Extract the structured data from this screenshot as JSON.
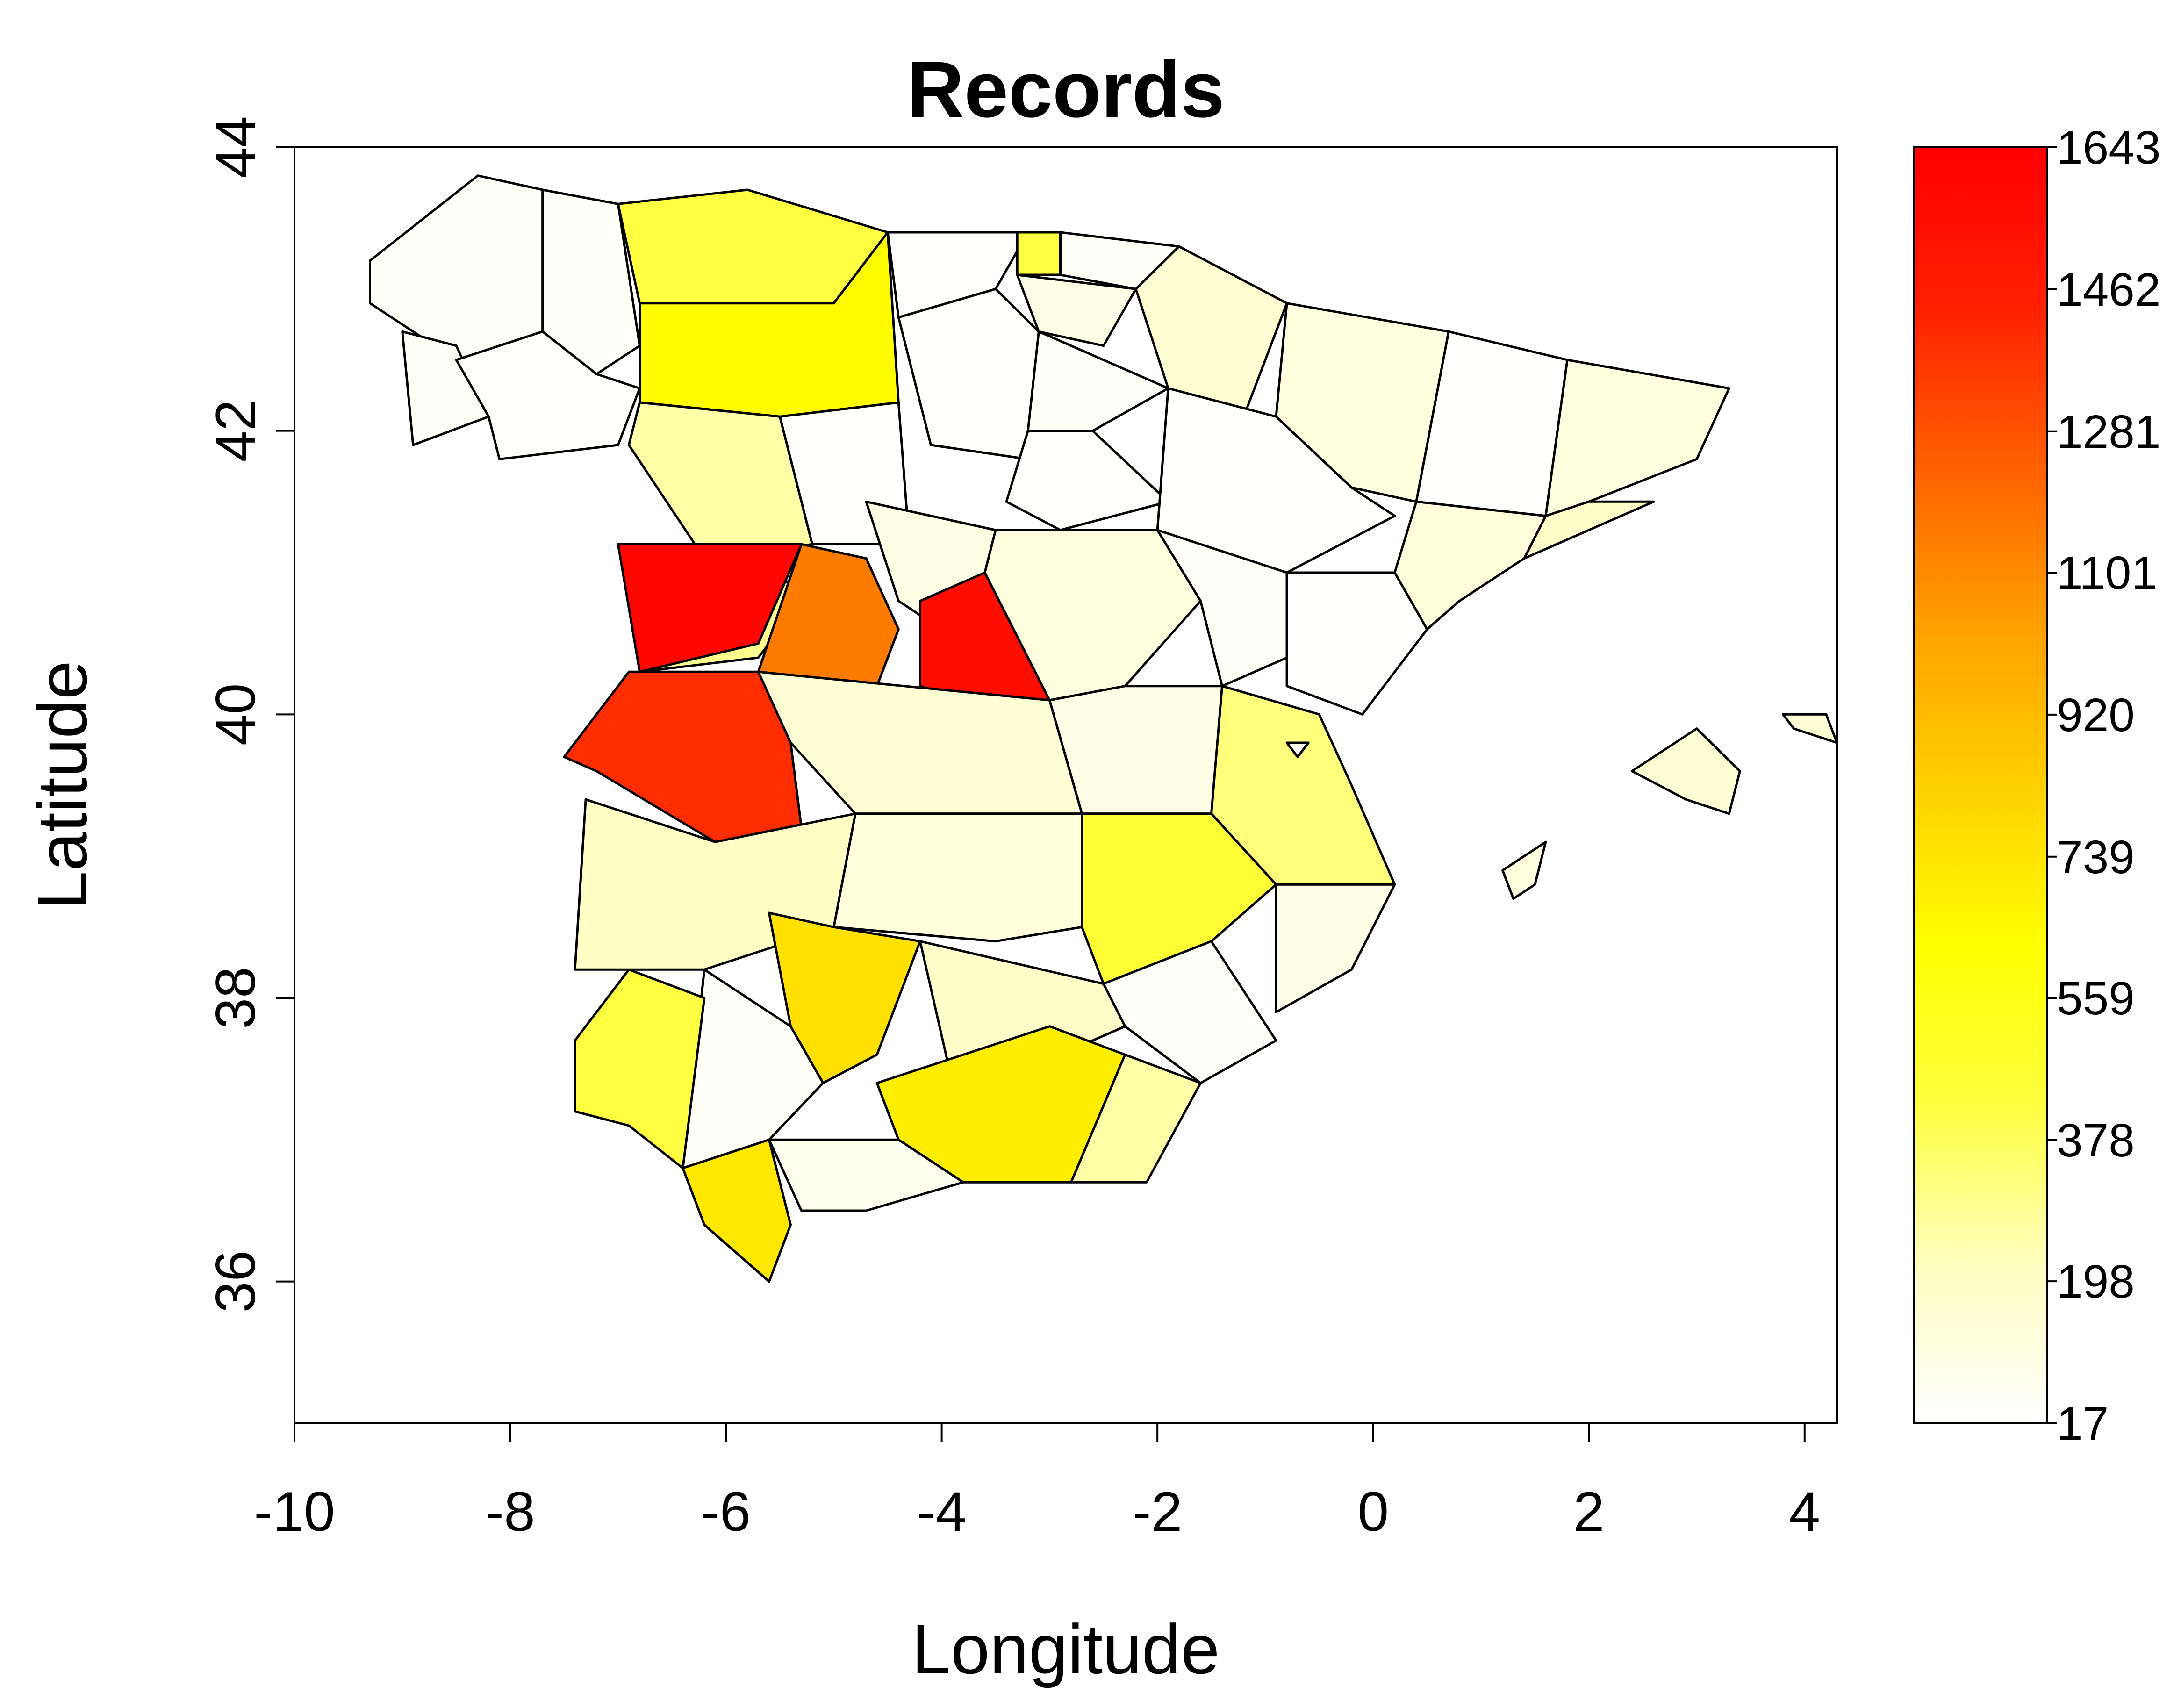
{
  "chart_data": {
    "type": "choropleth",
    "title": "Records",
    "xlabel": "Longitude",
    "ylabel": "Latitude",
    "xlim": [
      -10,
      4.3
    ],
    "ylim": [
      35,
      44
    ],
    "x_ticks": [
      "-10",
      "-8",
      "-6",
      "-4",
      "-2",
      "0",
      "2",
      "4"
    ],
    "y_ticks": [
      "36",
      "38",
      "40",
      "42",
      "44"
    ],
    "x_tick_values": [
      -10,
      -8,
      -6,
      -4,
      -2,
      0,
      2,
      4
    ],
    "y_tick_values": [
      36,
      38,
      40,
      42,
      44
    ],
    "colorbar": {
      "min": 17,
      "max": 1643,
      "labels": [
        "1643",
        "1462",
        "1281",
        "1101",
        "920",
        "739",
        "559",
        "378",
        "198",
        "17"
      ],
      "label_values": [
        1643,
        1462,
        1281,
        1101,
        920,
        739,
        559,
        378,
        198,
        17
      ],
      "stops": [
        "#ffffff",
        "#ffffc0",
        "#ffff40",
        "#ffff00",
        "#ffd000",
        "#ffa000",
        "#ff6000",
        "#ff2000",
        "#ff0000"
      ]
    },
    "regions": [
      {
        "value": 40,
        "poly": [
          [
            -9.3,
            43.2
          ],
          [
            -8.3,
            43.8
          ],
          [
            -7.7,
            43.7
          ],
          [
            -7.7,
            42.7
          ],
          [
            -8.5,
            42.5
          ],
          [
            -9.3,
            42.9
          ]
        ]
      },
      {
        "value": 35,
        "poly": [
          [
            -7.7,
            43.7
          ],
          [
            -7.0,
            43.6
          ],
          [
            -6.8,
            42.6
          ],
          [
            -7.2,
            42.4
          ],
          [
            -7.7,
            42.7
          ]
        ]
      },
      {
        "value": 40,
        "poly": [
          [
            -9.0,
            42.7
          ],
          [
            -8.5,
            42.6
          ],
          [
            -8.2,
            42.1
          ],
          [
            -8.9,
            41.9
          ]
        ]
      },
      {
        "value": 30,
        "poly": [
          [
            -8.5,
            42.5
          ],
          [
            -7.7,
            42.7
          ],
          [
            -7.2,
            42.4
          ],
          [
            -6.8,
            42.3
          ],
          [
            -7.0,
            41.9
          ],
          [
            -8.1,
            41.8
          ],
          [
            -8.2,
            42.1
          ]
        ]
      },
      {
        "value": 420,
        "poly": [
          [
            -7.0,
            43.6
          ],
          [
            -5.8,
            43.7
          ],
          [
            -4.5,
            43.4
          ],
          [
            -5.0,
            42.9
          ],
          [
            -6.8,
            42.9
          ]
        ]
      },
      {
        "value": 640,
        "poly": [
          [
            -6.8,
            42.9
          ],
          [
            -5.0,
            42.9
          ],
          [
            -4.5,
            43.4
          ],
          [
            -4.4,
            42.2
          ],
          [
            -5.5,
            42.1
          ],
          [
            -6.8,
            42.2
          ]
        ]
      },
      {
        "value": 260,
        "poly": [
          [
            -6.8,
            42.2
          ],
          [
            -5.5,
            42.1
          ],
          [
            -5.2,
            41.2
          ],
          [
            -6.2,
            41.1
          ],
          [
            -6.9,
            41.9
          ]
        ]
      },
      {
        "value": 20,
        "poly": [
          [
            -5.5,
            42.1
          ],
          [
            -4.4,
            42.2
          ],
          [
            -4.3,
            41.2
          ],
          [
            -5.2,
            41.2
          ]
        ]
      },
      {
        "value": 25,
        "poly": [
          [
            -4.5,
            43.4
          ],
          [
            -3.2,
            43.4
          ],
          [
            -3.5,
            43.0
          ],
          [
            -4.4,
            42.8
          ]
        ]
      },
      {
        "value": 420,
        "poly": [
          [
            -3.3,
            43.4
          ],
          [
            -2.9,
            43.4
          ],
          [
            -2.9,
            43.1
          ],
          [
            -3.3,
            43.1
          ]
        ]
      },
      {
        "value": 40,
        "poly": [
          [
            -2.9,
            43.4
          ],
          [
            -1.8,
            43.3
          ],
          [
            -2.2,
            43.0
          ],
          [
            -2.9,
            43.1
          ]
        ]
      },
      {
        "value": 90,
        "poly": [
          [
            -3.3,
            43.1
          ],
          [
            -2.2,
            43.0
          ],
          [
            -2.5,
            42.6
          ],
          [
            -3.1,
            42.7
          ]
        ]
      },
      {
        "value": 160,
        "poly": [
          [
            -1.8,
            43.3
          ],
          [
            -0.8,
            42.9
          ],
          [
            -1.2,
            42.1
          ],
          [
            -1.9,
            42.3
          ],
          [
            -2.2,
            43.0
          ]
        ]
      },
      {
        "value": 30,
        "poly": [
          [
            -4.4,
            42.8
          ],
          [
            -3.5,
            43.0
          ],
          [
            -3.1,
            42.7
          ],
          [
            -3.2,
            41.8
          ],
          [
            -4.1,
            41.9
          ]
        ]
      },
      {
        "value": 40,
        "poly": [
          [
            -3.1,
            42.7
          ],
          [
            -1.9,
            42.3
          ],
          [
            -2.6,
            42.0
          ],
          [
            -3.2,
            42.0
          ]
        ]
      },
      {
        "value": 30,
        "poly": [
          [
            -3.2,
            42.0
          ],
          [
            -2.6,
            42.0
          ],
          [
            -1.9,
            41.5
          ],
          [
            -2.9,
            41.3
          ],
          [
            -3.4,
            41.5
          ]
        ]
      },
      {
        "value": 120,
        "poly": [
          [
            -0.8,
            42.9
          ],
          [
            0.7,
            42.7
          ],
          [
            0.4,
            41.5
          ],
          [
            -0.2,
            41.6
          ],
          [
            -0.9,
            42.1
          ]
        ]
      },
      {
        "value": 30,
        "poly": [
          [
            -1.9,
            42.3
          ],
          [
            -0.9,
            42.1
          ],
          [
            -0.2,
            41.6
          ],
          [
            0.2,
            41.4
          ],
          [
            -0.8,
            41.0
          ],
          [
            -2.0,
            41.3
          ]
        ]
      },
      {
        "value": 25,
        "poly": [
          [
            0.7,
            42.7
          ],
          [
            1.8,
            42.5
          ],
          [
            1.6,
            41.4
          ],
          [
            0.4,
            41.5
          ]
        ]
      },
      {
        "value": 120,
        "poly": [
          [
            1.8,
            42.5
          ],
          [
            3.3,
            42.3
          ],
          [
            3.0,
            41.8
          ],
          [
            2.0,
            41.5
          ],
          [
            1.6,
            41.4
          ]
        ]
      },
      {
        "value": 180,
        "poly": [
          [
            1.6,
            41.4
          ],
          [
            2.0,
            41.5
          ],
          [
            2.6,
            41.5
          ],
          [
            2.0,
            41.3
          ],
          [
            1.4,
            41.1
          ],
          [
            1.6,
            41.4
          ]
        ]
      },
      {
        "value": 130,
        "poly": [
          [
            0.4,
            41.5
          ],
          [
            1.6,
            41.4
          ],
          [
            1.4,
            41.1
          ],
          [
            0.8,
            40.8
          ],
          [
            0.5,
            40.6
          ],
          [
            0.2,
            41.0
          ]
        ]
      },
      {
        "value": 300,
        "poly": [
          [
            -6.9,
            41.2
          ],
          [
            -5.7,
            41.2
          ],
          [
            -5.3,
            40.8
          ],
          [
            -5.7,
            40.4
          ],
          [
            -6.8,
            40.3
          ]
        ]
      },
      {
        "value": 1150,
        "poly": [
          [
            -5.3,
            41.2
          ],
          [
            -4.7,
            41.1
          ],
          [
            -4.4,
            40.6
          ],
          [
            -4.6,
            40.2
          ],
          [
            -5.7,
            40.3
          ]
        ]
      },
      {
        "value": 100,
        "poly": [
          [
            -4.7,
            41.5
          ],
          [
            -3.5,
            41.3
          ],
          [
            -3.6,
            41.0
          ],
          [
            -4.2,
            40.7
          ],
          [
            -4.4,
            40.8
          ]
        ]
      },
      {
        "value": 1600,
        "poly": [
          [
            -7.0,
            41.2
          ],
          [
            -5.3,
            41.2
          ],
          [
            -5.7,
            40.5
          ],
          [
            -6.8,
            40.3
          ]
        ]
      },
      {
        "value": 1560,
        "poly": [
          [
            -4.2,
            40.8
          ],
          [
            -3.6,
            41.0
          ],
          [
            -3.0,
            40.1
          ],
          [
            -3.4,
            40.0
          ],
          [
            -4.2,
            40.2
          ]
        ]
      },
      {
        "value": 1400,
        "poly": [
          [
            -7.5,
            39.7
          ],
          [
            -6.9,
            40.3
          ],
          [
            -5.7,
            40.3
          ],
          [
            -5.4,
            39.8
          ],
          [
            -5.3,
            39.2
          ],
          [
            -6.1,
            39.1
          ],
          [
            -7.2,
            39.6
          ]
        ]
      },
      {
        "value": 120,
        "poly": [
          [
            -3.5,
            41.3
          ],
          [
            -2.0,
            41.3
          ],
          [
            -1.6,
            40.8
          ],
          [
            -2.3,
            40.2
          ],
          [
            -3.0,
            40.1
          ],
          [
            -3.6,
            41.0
          ]
        ]
      },
      {
        "value": 40,
        "poly": [
          [
            -2.0,
            41.3
          ],
          [
            -0.8,
            41.0
          ],
          [
            -0.8,
            40.4
          ],
          [
            -1.4,
            40.2
          ],
          [
            -1.6,
            40.8
          ]
        ]
      },
      {
        "value": 20,
        "poly": [
          [
            -0.8,
            41.0
          ],
          [
            0.2,
            41.0
          ],
          [
            0.5,
            40.6
          ],
          [
            -0.1,
            40.0
          ],
          [
            -0.8,
            40.2
          ]
        ]
      },
      {
        "value": 90,
        "poly": [
          [
            -2.3,
            40.2
          ],
          [
            -1.4,
            40.2
          ],
          [
            -0.9,
            39.5
          ],
          [
            -1.5,
            39.3
          ],
          [
            -2.7,
            39.3
          ],
          [
            -3.0,
            40.1
          ]
        ]
      },
      {
        "value": 150,
        "poly": [
          [
            -5.7,
            40.3
          ],
          [
            -3.0,
            40.1
          ],
          [
            -2.7,
            39.3
          ],
          [
            -4.8,
            39.3
          ],
          [
            -5.4,
            39.8
          ]
        ]
      },
      {
        "value": 330,
        "poly": [
          [
            -1.4,
            40.2
          ],
          [
            -0.5,
            40.0
          ],
          [
            -0.2,
            39.5
          ],
          [
            0.2,
            38.8
          ],
          [
            -0.9,
            38.8
          ],
          [
            -1.5,
            39.3
          ]
        ]
      },
      {
        "value": 200,
        "poly": [
          [
            -7.3,
            39.4
          ],
          [
            -6.1,
            39.1
          ],
          [
            -4.8,
            39.3
          ],
          [
            -5.0,
            38.5
          ],
          [
            -6.2,
            38.2
          ],
          [
            -7.4,
            38.2
          ]
        ]
      },
      {
        "value": 130,
        "poly": [
          [
            -4.8,
            39.3
          ],
          [
            -2.7,
            39.3
          ],
          [
            -2.7,
            38.5
          ],
          [
            -3.5,
            38.4
          ],
          [
            -5.0,
            38.5
          ]
        ]
      },
      {
        "value": 460,
        "poly": [
          [
            -2.7,
            39.3
          ],
          [
            -1.5,
            39.3
          ],
          [
            -0.9,
            38.8
          ],
          [
            -1.5,
            38.4
          ],
          [
            -2.5,
            38.1
          ],
          [
            -2.7,
            38.5
          ]
        ]
      },
      {
        "value": 90,
        "poly": [
          [
            -0.9,
            38.8
          ],
          [
            0.2,
            38.8
          ],
          [
            -0.2,
            38.2
          ],
          [
            -0.9,
            37.9
          ]
        ]
      },
      {
        "value": 35,
        "poly": [
          [
            -2.5,
            38.1
          ],
          [
            -1.5,
            38.4
          ],
          [
            -0.9,
            37.7
          ],
          [
            -1.6,
            37.4
          ],
          [
            -2.3,
            37.8
          ]
        ]
      },
      {
        "value": 760,
        "poly": [
          [
            -5.6,
            38.6
          ],
          [
            -5.0,
            38.5
          ],
          [
            -4.2,
            38.4
          ],
          [
            -4.6,
            37.6
          ],
          [
            -5.1,
            37.4
          ],
          [
            -5.4,
            37.8
          ]
        ]
      },
      {
        "value": 190,
        "poly": [
          [
            -4.2,
            38.4
          ],
          [
            -2.5,
            38.1
          ],
          [
            -2.3,
            37.8
          ],
          [
            -2.9,
            37.6
          ],
          [
            -3.9,
            37.4
          ]
        ]
      },
      {
        "value": 700,
        "poly": [
          [
            -4.6,
            37.4
          ],
          [
            -3.0,
            37.8
          ],
          [
            -2.3,
            37.6
          ],
          [
            -2.8,
            36.7
          ],
          [
            -3.8,
            36.7
          ],
          [
            -4.4,
            37.0
          ]
        ]
      },
      {
        "value": 260,
        "poly": [
          [
            -2.3,
            37.6
          ],
          [
            -1.6,
            37.4
          ],
          [
            -2.1,
            36.7
          ],
          [
            -2.8,
            36.7
          ]
        ]
      },
      {
        "value": 40,
        "poly": [
          [
            -6.2,
            38.2
          ],
          [
            -5.4,
            37.8
          ],
          [
            -5.1,
            37.4
          ],
          [
            -5.6,
            37.0
          ],
          [
            -6.4,
            36.8
          ]
        ]
      },
      {
        "value": 70,
        "poly": [
          [
            -5.6,
            37.0
          ],
          [
            -4.4,
            37.0
          ],
          [
            -3.8,
            36.7
          ],
          [
            -4.7,
            36.5
          ],
          [
            -5.3,
            36.5
          ]
        ]
      },
      {
        "value": 420,
        "poly": [
          [
            -7.4,
            37.7
          ],
          [
            -6.9,
            38.2
          ],
          [
            -6.2,
            38.0
          ],
          [
            -6.4,
            36.8
          ],
          [
            -6.9,
            37.1
          ],
          [
            -7.4,
            37.2
          ]
        ]
      },
      {
        "value": 730,
        "poly": [
          [
            -6.4,
            36.8
          ],
          [
            -5.6,
            37.0
          ],
          [
            -5.4,
            36.4
          ],
          [
            -5.6,
            36.0
          ],
          [
            -6.2,
            36.4
          ]
        ]
      },
      {
        "value": 60,
        "poly": [
          [
            -0.8,
            39.8
          ],
          [
            -0.6,
            39.8
          ],
          [
            -0.7,
            39.7
          ]
        ]
      },
      {
        "value": 150,
        "poly": [
          [
            2.4,
            39.6
          ],
          [
            3.0,
            39.9
          ],
          [
            3.4,
            39.6
          ],
          [
            3.3,
            39.3
          ],
          [
            2.9,
            39.4
          ]
        ]
      },
      {
        "value": 150,
        "poly": [
          [
            3.8,
            40.0
          ],
          [
            4.2,
            40.0
          ],
          [
            4.3,
            39.8
          ],
          [
            3.9,
            39.9
          ]
        ]
      },
      {
        "value": 120,
        "poly": [
          [
            1.2,
            38.9
          ],
          [
            1.6,
            39.1
          ],
          [
            1.5,
            38.8
          ],
          [
            1.3,
            38.7
          ]
        ]
      }
    ]
  }
}
